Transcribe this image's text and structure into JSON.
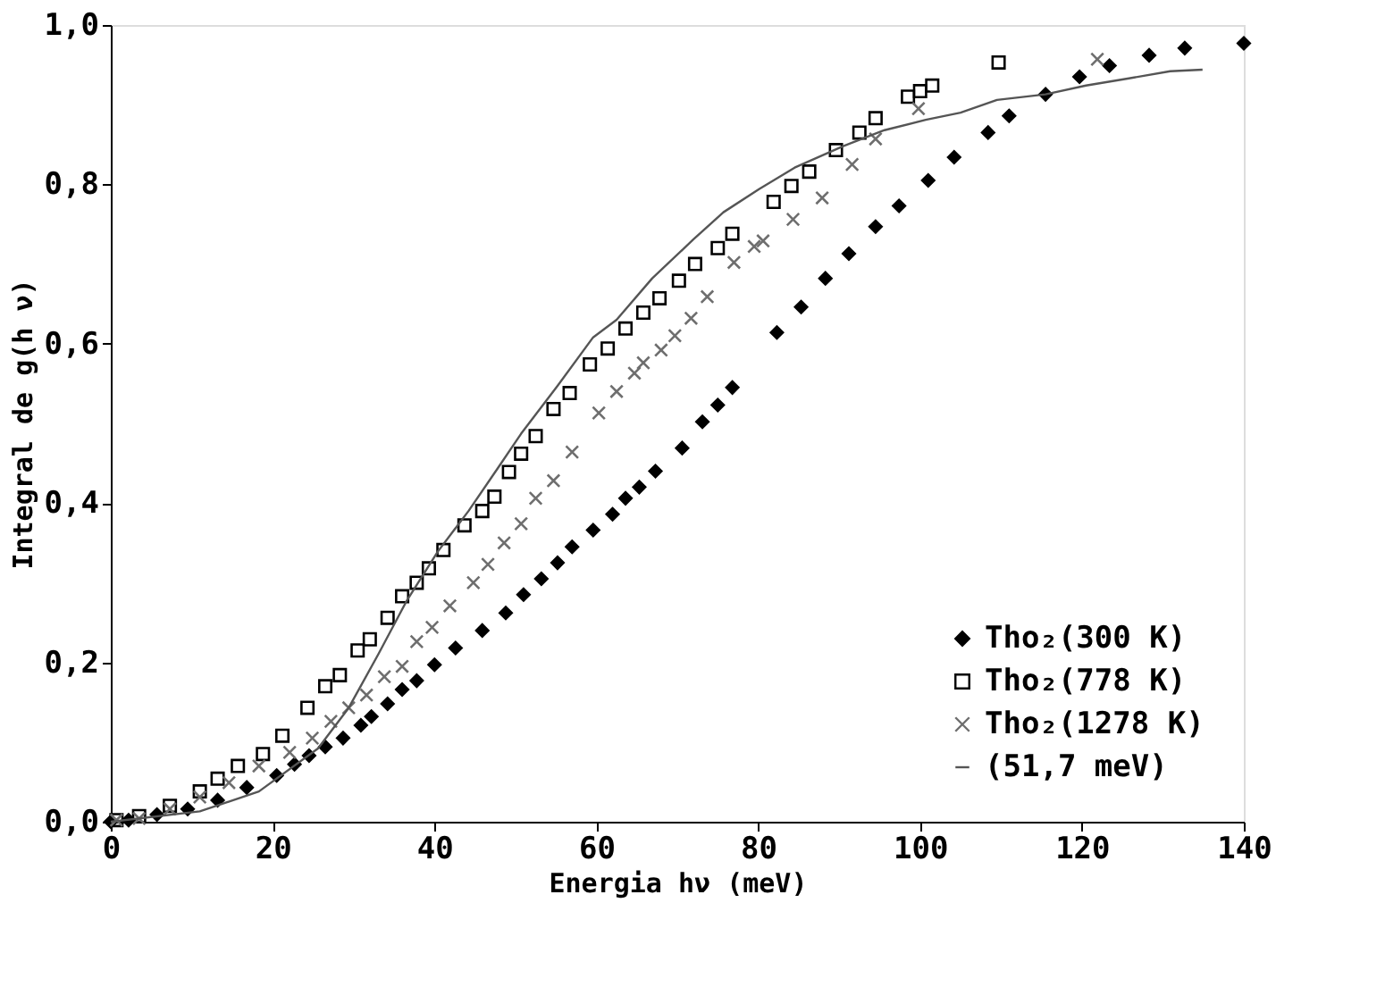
{
  "chart_data": {
    "type": "scatter",
    "xlabel": "Energia hν (meV)",
    "ylabel": "Integral de g(h ν)",
    "xlim": [
      0,
      140
    ],
    "xticks": [
      0,
      20,
      40,
      60,
      80,
      100,
      120,
      140
    ],
    "ylim": [
      0,
      1.0
    ],
    "yticks": [
      {
        "value": 0,
        "label": "0,0"
      },
      {
        "value": 0.2,
        "label": "0,2"
      },
      {
        "value": 0.4,
        "label": "0,4"
      },
      {
        "value": 0.6,
        "label": "0,6"
      },
      {
        "value": 0.8,
        "label": "0,8"
      },
      {
        "value": 1.0,
        "label": "1,0"
      }
    ],
    "grid": false,
    "legend": "bottom right",
    "series": [
      {
        "name": "Tho₂(300 K)",
        "marker": "diamond",
        "color": "#000000",
        "x": [
          0,
          2.2,
          5.7,
          9.5,
          13.2,
          16.8,
          20.5,
          22.7,
          24.5,
          26.5,
          28.7,
          30.9,
          32.2,
          34.2,
          36,
          37.8,
          40,
          42.6,
          45.9,
          48.8,
          51,
          53.2,
          55.2,
          57,
          59.6,
          62,
          63.6,
          65.3,
          67.3,
          70.6,
          73.1,
          75,
          76.8,
          82.3,
          85.3,
          88.3,
          91.2,
          94.5,
          97.4,
          101,
          104.2,
          108.4,
          111,
          115.5,
          119.7,
          123.4,
          128.3,
          132.7,
          140
        ],
        "values": [
          0,
          0.002,
          0.009,
          0.016,
          0.027,
          0.043,
          0.058,
          0.072,
          0.083,
          0.094,
          0.105,
          0.121,
          0.132,
          0.148,
          0.166,
          0.177,
          0.197,
          0.218,
          0.24,
          0.262,
          0.285,
          0.305,
          0.325,
          0.345,
          0.366,
          0.386,
          0.406,
          0.42,
          0.44,
          0.469,
          0.502,
          0.523,
          0.545,
          0.614,
          0.646,
          0.682,
          0.713,
          0.747,
          0.773,
          0.805,
          0.834,
          0.865,
          0.886,
          0.913,
          0.935,
          0.949,
          0.962,
          0.971,
          0.977
        ]
      },
      {
        "name": "Tho₂(778 K)",
        "marker": "square",
        "color": "#000000",
        "x": [
          0.7,
          3.5,
          7.3,
          11,
          13.2,
          15.7,
          18.8,
          21.2,
          24.3,
          26.5,
          28.3,
          30.5,
          32,
          34.2,
          36,
          37.8,
          39.3,
          41.1,
          43.7,
          45.9,
          47.4,
          49.2,
          50.7,
          52.5,
          54.7,
          56.7,
          59.2,
          61.4,
          63.6,
          65.8,
          67.8,
          70.2,
          72.2,
          75,
          76.8,
          81.9,
          84.1,
          86.3,
          89.6,
          92.5,
          94.5,
          98.5,
          100,
          101.5,
          109.7
        ],
        "values": [
          0.002,
          0.007,
          0.02,
          0.038,
          0.054,
          0.07,
          0.085,
          0.108,
          0.143,
          0.17,
          0.184,
          0.215,
          0.229,
          0.256,
          0.283,
          0.3,
          0.318,
          0.341,
          0.372,
          0.39,
          0.408,
          0.439,
          0.462,
          0.484,
          0.518,
          0.538,
          0.574,
          0.594,
          0.619,
          0.639,
          0.657,
          0.679,
          0.7,
          0.72,
          0.738,
          0.778,
          0.798,
          0.816,
          0.843,
          0.865,
          0.883,
          0.91,
          0.917,
          0.924,
          0.953
        ]
      },
      {
        "name": "Tho₂(1278 K)",
        "marker": "cross",
        "color": "#6e6e6e",
        "x": [
          0.7,
          3.5,
          7.3,
          11,
          14.6,
          18.3,
          22.1,
          24.9,
          27.2,
          29.4,
          31.6,
          33.8,
          36,
          37.8,
          39.7,
          41.9,
          44.8,
          46.6,
          48.6,
          50.7,
          52.5,
          54.7,
          57,
          60.3,
          62.5,
          64.7,
          65.8,
          68,
          69.7,
          71.7,
          73.7,
          77,
          79.5,
          80.6,
          84.3,
          87.9,
          91.6,
          94.5,
          99.8,
          121.9
        ],
        "values": [
          0.002,
          0.004,
          0.016,
          0.031,
          0.049,
          0.07,
          0.087,
          0.105,
          0.126,
          0.143,
          0.159,
          0.182,
          0.195,
          0.226,
          0.244,
          0.271,
          0.3,
          0.323,
          0.35,
          0.374,
          0.406,
          0.428,
          0.464,
          0.513,
          0.54,
          0.563,
          0.576,
          0.592,
          0.61,
          0.632,
          0.659,
          0.702,
          0.722,
          0.729,
          0.756,
          0.783,
          0.825,
          0.857,
          0.895,
          0.957
        ]
      },
      {
        "name": "(51,7 meV)",
        "type": "line",
        "line_style": "solid",
        "color": "#555555",
        "x": [
          0,
          11,
          18.3,
          25.6,
          29.4,
          33.1,
          36.6,
          40.4,
          44.2,
          47.7,
          50.7,
          55.2,
          59.6,
          62.5,
          66.9,
          72,
          75.7,
          80.1,
          84.5,
          90.5,
          95.6,
          100.7,
          105,
          109.5,
          115.5,
          120.5,
          125.8,
          130.9,
          134.9
        ],
        "values": [
          0,
          0.013,
          0.038,
          0.092,
          0.143,
          0.211,
          0.278,
          0.339,
          0.39,
          0.442,
          0.487,
          0.547,
          0.608,
          0.63,
          0.682,
          0.731,
          0.765,
          0.794,
          0.821,
          0.848,
          0.868,
          0.881,
          0.89,
          0.906,
          0.913,
          0.924,
          0.933,
          0.942,
          0.944
        ]
      }
    ]
  }
}
